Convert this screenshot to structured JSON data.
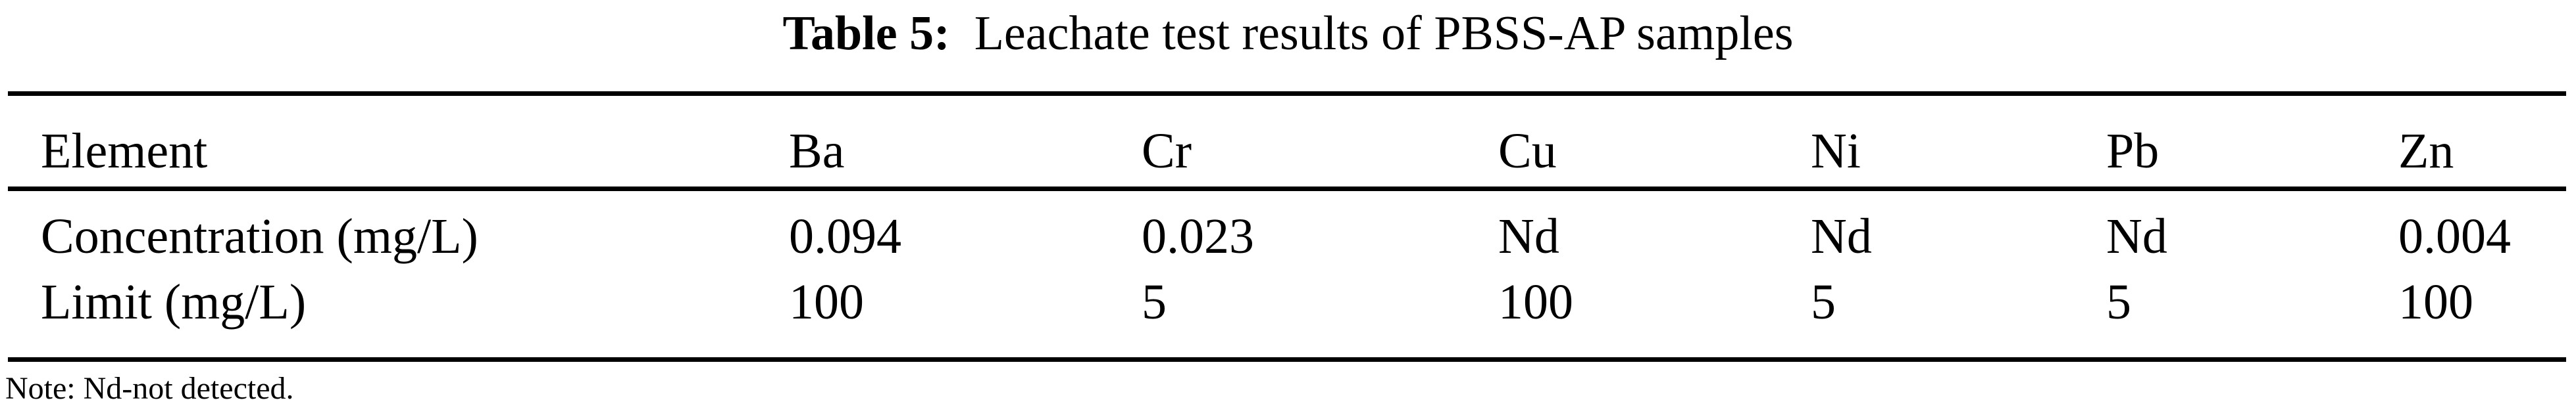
{
  "caption": {
    "label": "Table 5:",
    "text": "Leachate test results of PBSS-AP samples"
  },
  "table": {
    "header": [
      "Element",
      "Ba",
      "Cr",
      "Cu",
      "Ni",
      "Pb",
      "Zn"
    ],
    "rows": [
      [
        "Concentration (mg/L)",
        "0.094",
        "0.023",
        "Nd",
        "Nd",
        "Nd",
        "0.004"
      ],
      [
        "Limit (mg/L)",
        "100",
        "5",
        "100",
        "5",
        "5",
        "100"
      ]
    ]
  },
  "note": "Note: Nd-not detected."
}
